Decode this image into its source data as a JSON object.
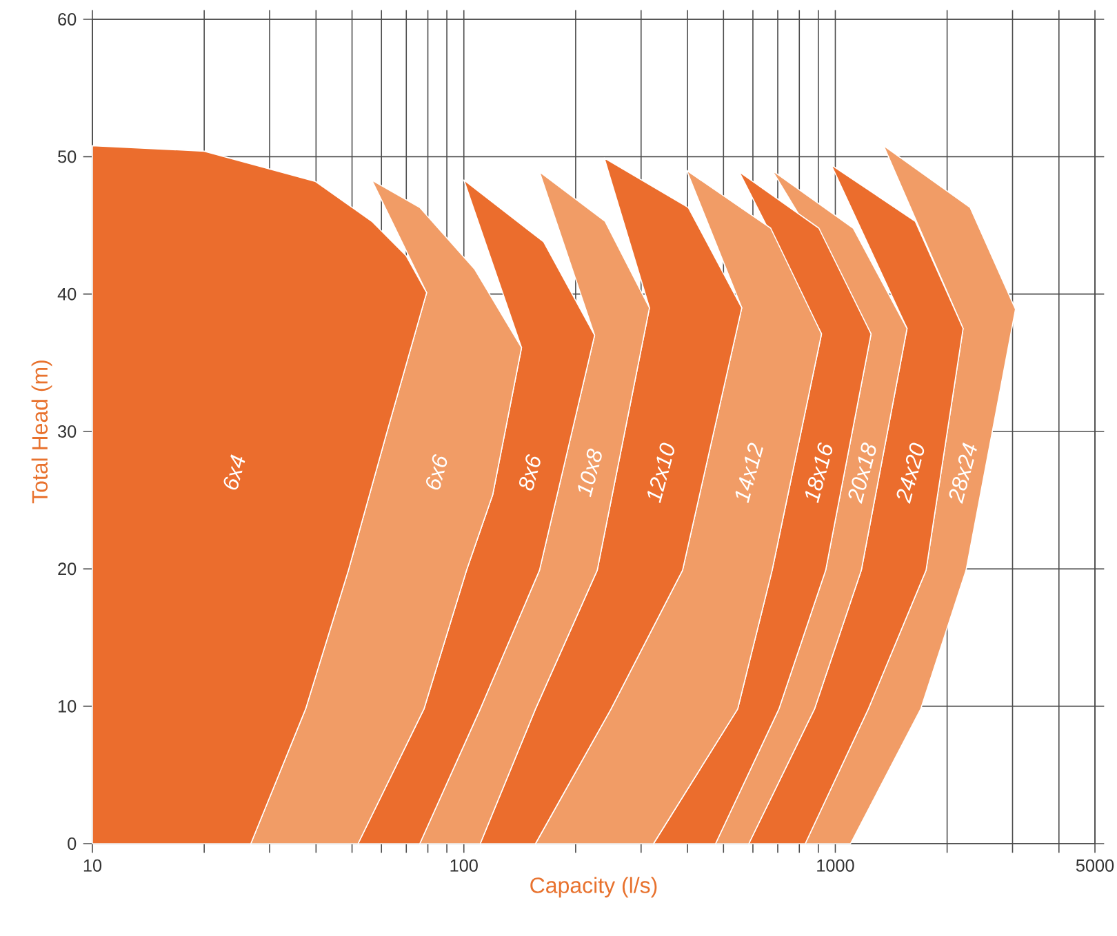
{
  "chart_data": {
    "type": "area",
    "xlabel": "Capacity (l/s)",
    "ylabel": "Total Head (m)",
    "log": "x",
    "grid": true,
    "xlim": [
      10,
      5000
    ],
    "ylim": [
      0,
      60
    ],
    "xticks": [
      10,
      {
        "value": 20,
        "label": null
      },
      {
        "value": 30,
        "label": null
      },
      {
        "value": 40,
        "label": null
      },
      {
        "value": 50,
        "label": null
      },
      {
        "value": 60,
        "label": null
      },
      {
        "value": 70,
        "label": null
      },
      {
        "value": 80,
        "label": null
      },
      {
        "value": 90,
        "label": null
      },
      100,
      {
        "value": 200,
        "label": null
      },
      {
        "value": 300,
        "label": null
      },
      {
        "value": 400,
        "label": null
      },
      {
        "value": 500,
        "label": null
      },
      {
        "value": 600,
        "label": null
      },
      {
        "value": 700,
        "label": null
      },
      {
        "value": 800,
        "label": null
      },
      {
        "value": 900,
        "label": null
      },
      1000,
      {
        "value": 2000,
        "label": null
      },
      {
        "value": 3000,
        "label": null
      },
      {
        "value": 4000,
        "label": null
      },
      5000
    ],
    "yticks": [
      0,
      10,
      20,
      30,
      40,
      50,
      60
    ],
    "series": [
      {
        "name": "6x4",
        "color": "#eb6d2d",
        "x": [
          10,
          10,
          20,
          39.8,
          56.5,
          69.9,
          79.4,
          62.0,
          48.9,
          37.5,
          26.7
        ],
        "values": [
          0,
          50.8,
          50.4,
          48.2,
          45.3,
          42.8,
          40.1,
          29.9,
          19.9,
          9.8,
          0
        ]
      },
      {
        "name": "6x6",
        "color": "#f19c66",
        "x": [
          26.7,
          37.5,
          48.9,
          62.0,
          79.4,
          56.5,
          76.1,
          107,
          143,
          119.6,
          101.7,
          78.1,
          51.9
        ],
        "values": [
          0,
          9.8,
          19.9,
          29.9,
          40.1,
          48.3,
          46.3,
          41.8,
          36.1,
          25.4,
          19.9,
          9.8,
          0
        ]
      },
      {
        "name": "8x6",
        "color": "#eb6d2d",
        "x": [
          51.9,
          78.1,
          101.7,
          119.6,
          143,
          100,
          164,
          224.9,
          159.8,
          110.7,
          76.1
        ],
        "values": [
          0,
          9.8,
          19.9,
          25.4,
          36.1,
          48.3,
          43.8,
          37.0,
          19.9,
          9.8,
          0
        ]
      },
      {
        "name": "10x8",
        "color": "#f19c66",
        "x": [
          76.1,
          110.7,
          159.8,
          224.9,
          159.8,
          240,
          316,
          228.6,
          155.9,
          110.7
        ],
        "values": [
          0,
          9.8,
          19.9,
          37.0,
          48.9,
          45.3,
          39.0,
          19.9,
          9.8,
          0
        ]
      },
      {
        "name": "12x10",
        "color": "#eb6d2d",
        "x": [
          110.7,
          155.9,
          228.6,
          316,
          238.8,
          402,
          560,
          388,
          249,
          155.9
        ],
        "values": [
          0,
          9.8,
          19.9,
          39.0,
          49.9,
          46.3,
          39.0,
          19.9,
          9.8,
          0
        ]
      },
      {
        "name": "14x12",
        "color": "#f19c66",
        "x": [
          155.9,
          249,
          388,
          560,
          398,
          670,
          918,
          676,
          546,
          324
        ],
        "values": [
          0,
          9.8,
          19.9,
          39.0,
          49.0,
          44.8,
          37.1,
          19.9,
          9.8,
          0
        ]
      },
      {
        "name": "18x16",
        "color": "#eb6d2d",
        "x": [
          324,
          546,
          676,
          918,
          551,
          903,
          1248,
          942,
          705,
          476
        ],
        "values": [
          0,
          9.8,
          19.9,
          37.1,
          48.9,
          44.8,
          37.1,
          19.9,
          9.8,
          0
        ]
      },
      {
        "name": "20x18",
        "color": "#f19c66",
        "x": [
          476,
          705,
          942,
          1248,
          676,
          1117,
          1560,
          1175,
          879,
          585
        ],
        "values": [
          0,
          9.8,
          19.9,
          37.1,
          49.0,
          44.8,
          37.5,
          19.9,
          9.8,
          0
        ]
      },
      {
        "name": "24x20",
        "color": "#eb6d2d",
        "x": [
          585,
          879,
          1175,
          1560,
          975,
          1641,
          2208,
          1755,
          1227,
          830
        ],
        "values": [
          0,
          9.8,
          19.9,
          37.5,
          49.4,
          45.3,
          37.5,
          19.9,
          9.8,
          0
        ]
      },
      {
        "name": "28x24",
        "color": "#f19c66",
        "x": [
          830,
          1227,
          1755,
          2208,
          1349,
          2307,
          3055,
          2249,
          1698,
          1099
        ],
        "values": [
          0,
          9.8,
          19.9,
          37.5,
          50.8,
          46.3,
          38.9,
          19.9,
          9.8,
          0
        ]
      }
    ]
  }
}
